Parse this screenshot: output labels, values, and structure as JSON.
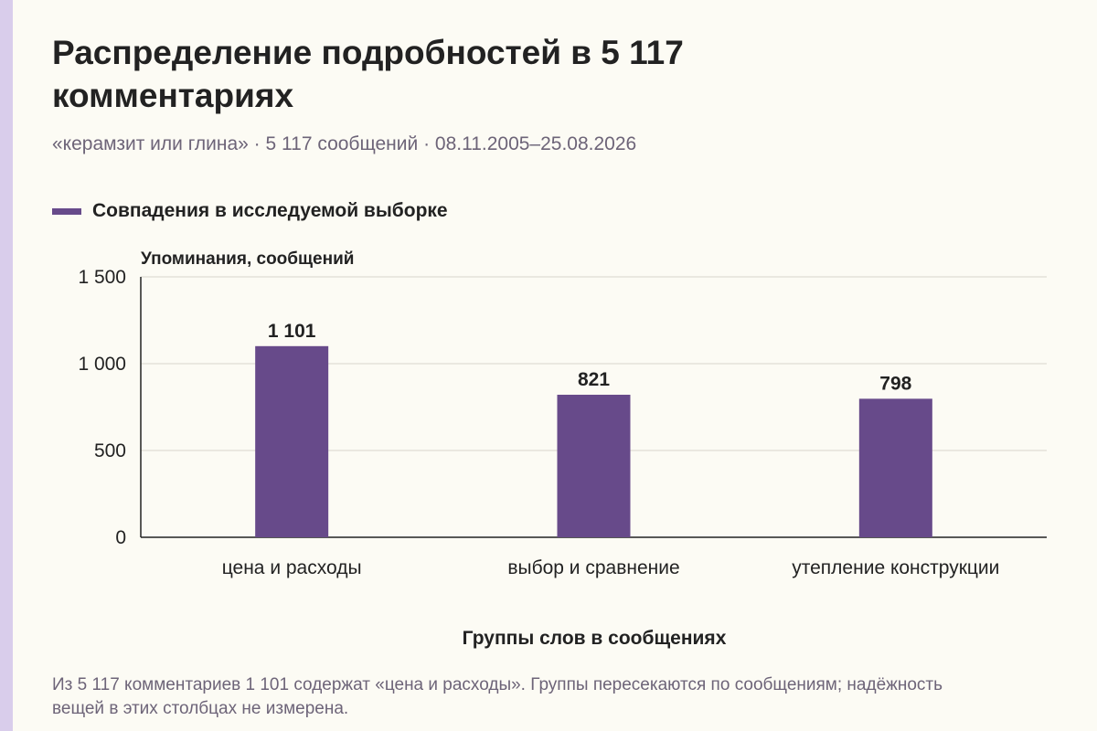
{
  "title": "Распределение подробностей в 5 117 комментариях",
  "subtitle": "«керамзит или глина» · 5 117 сообщений · 08.11.2005–25.08.2026",
  "colors": {
    "bar": "#674a8a",
    "grid": "#d9d6cc",
    "axis": "#222222",
    "stripe": "#d9cdeb"
  },
  "note": "Из 5 117 комментариев 1 101 содержат «цена и расходы». Группы пересекаются по сообщениям; надёжность вещей в этих столбцах не измерена.",
  "chart_data": {
    "type": "bar",
    "title": "Распределение подробностей в 5 117 комментариях",
    "xlabel": "Группы слов в сообщениях",
    "ylabel": "Упоминания, сообщений",
    "categories": [
      "цена и расходы",
      "выбор и сравнение",
      "утепление конструкции"
    ],
    "series": [
      {
        "name": "Совпадения в исследуемой выборке",
        "values": [
          1101,
          821,
          798
        ],
        "labels": [
          "1 101",
          "821",
          "798"
        ]
      }
    ],
    "ylim": [
      0,
      1500
    ],
    "yticks": [
      0,
      500,
      1000,
      1500
    ],
    "ytick_labels": [
      "0",
      "500",
      "1 000",
      "1 500"
    ],
    "grid": true,
    "legend_position": "top-left"
  }
}
